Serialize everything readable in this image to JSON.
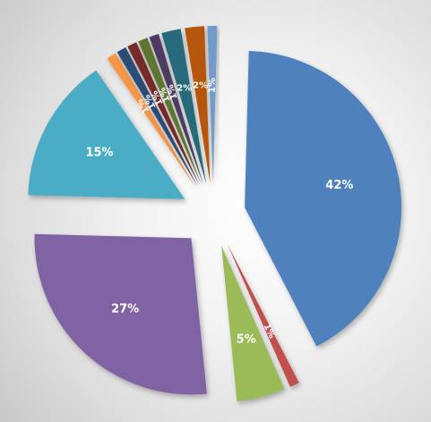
{
  "chart_data": {
    "type": "pie",
    "title": "",
    "legend": "none",
    "slices": [
      {
        "label": "42%",
        "value": 42,
        "color": "#4F81BD"
      },
      {
        "label": "1%",
        "value": 1,
        "color": "#C0504D"
      },
      {
        "label": "5%",
        "value": 5,
        "color": "#9BBB59"
      },
      {
        "label": "27%",
        "value": 27,
        "color": "#8064A2"
      },
      {
        "label": "15%",
        "value": 15,
        "color": "#4BACC6"
      },
      {
        "label": "1%",
        "value": 1,
        "color": "#F79646"
      },
      {
        "label": "1%",
        "value": 1,
        "color": "#2C4D75"
      },
      {
        "label": "1%",
        "value": 1,
        "color": "#772C2A"
      },
      {
        "label": "1%",
        "value": 1,
        "color": "#5F7530"
      },
      {
        "label": "1%",
        "value": 1,
        "color": "#4D3B62"
      },
      {
        "label": "2%",
        "value": 2,
        "color": "#276A7C"
      },
      {
        "label": "2%",
        "value": 2,
        "color": "#B65708"
      },
      {
        "label": "1%",
        "value": 1,
        "color": "#729ACA"
      }
    ]
  }
}
